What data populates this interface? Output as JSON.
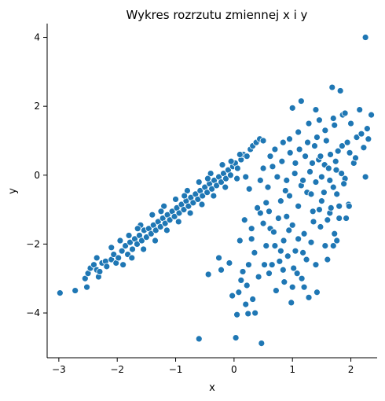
{
  "chart_data": {
    "type": "scatter",
    "title": "Wykres rozrzutu zmiennej x i y",
    "xlabel": "x",
    "ylabel": "y",
    "xlim": [
      -3.2,
      2.45
    ],
    "ylim": [
      -5.3,
      4.4
    ],
    "xticks": [
      -3,
      -2,
      -1,
      0,
      1,
      2
    ],
    "yticks": [
      -4,
      -2,
      0,
      2,
      4
    ],
    "xtick_labels": [
      "−3",
      "−2",
      "−1",
      "0",
      "1",
      "2"
    ],
    "ytick_labels": [
      "−4",
      "−2",
      "0",
      "2",
      "4"
    ],
    "grid": false,
    "color": "#1f77b4",
    "series": [
      {
        "points": [
          [
            -2.98,
            -3.42
          ],
          [
            -2.72,
            -3.35
          ],
          [
            -2.52,
            -3.25
          ],
          [
            -2.55,
            -3.0
          ],
          [
            -2.5,
            -2.85
          ],
          [
            -2.46,
            -2.7
          ],
          [
            -2.4,
            -2.6
          ],
          [
            -2.35,
            -2.75
          ],
          [
            -2.32,
            -2.95
          ],
          [
            -2.3,
            -2.8
          ],
          [
            -2.26,
            -2.55
          ],
          [
            -2.2,
            -2.5
          ],
          [
            -2.18,
            -2.65
          ],
          [
            -2.1,
            -2.45
          ],
          [
            -2.06,
            -2.3
          ],
          [
            -2.02,
            -2.55
          ],
          [
            -1.95,
            -1.9
          ],
          [
            -1.98,
            -2.4
          ],
          [
            -1.92,
            -2.2
          ],
          [
            -1.86,
            -2.05
          ],
          [
            -1.82,
            -2.3
          ],
          [
            -1.78,
            -1.95
          ],
          [
            -1.74,
            -2.15
          ],
          [
            -1.7,
            -1.85
          ],
          [
            -1.66,
            -2.0
          ],
          [
            -1.62,
            -1.75
          ],
          [
            -1.58,
            -1.9
          ],
          [
            -1.54,
            -1.6
          ],
          [
            -1.5,
            -1.8
          ],
          [
            -1.46,
            -1.55
          ],
          [
            -1.42,
            -1.7
          ],
          [
            -1.38,
            -1.45
          ],
          [
            -1.34,
            -1.6
          ],
          [
            -1.3,
            -1.35
          ],
          [
            -1.26,
            -1.5
          ],
          [
            -1.22,
            -1.25
          ],
          [
            -1.18,
            -1.4
          ],
          [
            -1.14,
            -1.15
          ],
          [
            -1.1,
            -1.3
          ],
          [
            -1.06,
            -1.05
          ],
          [
            -1.02,
            -1.2
          ],
          [
            -0.98,
            -0.95
          ],
          [
            -0.94,
            -1.1
          ],
          [
            -0.9,
            -0.85
          ],
          [
            -0.86,
            -1.0
          ],
          [
            -0.82,
            -0.75
          ],
          [
            -0.78,
            -0.9
          ],
          [
            -0.74,
            -0.65
          ],
          [
            -0.7,
            -0.8
          ],
          [
            -0.66,
            -0.55
          ],
          [
            -0.62,
            -0.7
          ],
          [
            -0.58,
            -0.45
          ],
          [
            -0.54,
            -0.6
          ],
          [
            -0.5,
            -0.35
          ],
          [
            -0.46,
            -0.5
          ],
          [
            -0.42,
            -0.25
          ],
          [
            -0.38,
            -0.4
          ],
          [
            -0.34,
            -0.15
          ],
          [
            -0.3,
            -0.3
          ],
          [
            -0.26,
            -0.05
          ],
          [
            -0.22,
            -0.2
          ],
          [
            -0.18,
            0.05
          ],
          [
            -0.14,
            -0.1
          ],
          [
            -0.1,
            0.15
          ],
          [
            -0.06,
            0.0
          ],
          [
            -0.02,
            0.25
          ],
          [
            0.02,
            0.35
          ],
          [
            0.06,
            0.2
          ],
          [
            0.12,
            0.45
          ],
          [
            0.16,
            0.6
          ],
          [
            0.22,
            0.55
          ],
          [
            0.28,
            0.75
          ],
          [
            0.32,
            0.85
          ],
          [
            0.38,
            0.95
          ],
          [
            0.44,
            1.05
          ],
          [
            0.5,
            1.0
          ],
          [
            -1.9,
            -2.6
          ],
          [
            -1.75,
            -2.4
          ],
          [
            -1.55,
            -2.15
          ],
          [
            -1.35,
            -1.9
          ],
          [
            -1.15,
            -1.6
          ],
          [
            -0.95,
            -1.35
          ],
          [
            -0.75,
            -1.1
          ],
          [
            -0.55,
            -0.85
          ],
          [
            -0.35,
            -0.6
          ],
          [
            -0.15,
            -0.35
          ],
          [
            0.05,
            -0.1
          ],
          [
            -2.1,
            -2.1
          ],
          [
            -1.8,
            -1.75
          ],
          [
            -1.6,
            -1.45
          ],
          [
            -1.4,
            -1.15
          ],
          [
            -1.2,
            -0.9
          ],
          [
            -1.0,
            -0.7
          ],
          [
            -0.8,
            -0.45
          ],
          [
            -0.6,
            -0.2
          ],
          [
            -0.4,
            0.05
          ],
          [
            -0.2,
            0.3
          ],
          [
            0.1,
            0.6
          ],
          [
            -2.35,
            -2.4
          ],
          [
            -1.65,
            -1.55
          ],
          [
            -1.25,
            -1.05
          ],
          [
            -0.85,
            -0.6
          ],
          [
            -0.45,
            -0.1
          ],
          [
            -0.05,
            0.4
          ],
          [
            0.3,
            -1.85
          ],
          [
            0.35,
            -2.25
          ],
          [
            0.42,
            -2.95
          ],
          [
            0.25,
            -2.6
          ],
          [
            0.18,
            -1.3
          ],
          [
            0.45,
            -1.1
          ],
          [
            0.55,
            -0.8
          ],
          [
            0.62,
            -1.55
          ],
          [
            0.7,
            -2.05
          ],
          [
            0.78,
            -2.5
          ],
          [
            0.85,
            -1.9
          ],
          [
            0.9,
            -1.2
          ],
          [
            0.95,
            -0.6
          ],
          [
            1.0,
            -1.45
          ],
          [
            1.05,
            -2.2
          ],
          [
            1.1,
            -0.9
          ],
          [
            1.15,
            -0.3
          ],
          [
            1.2,
            -1.7
          ],
          [
            1.25,
            -0.5
          ],
          [
            1.3,
            0.1
          ],
          [
            1.35,
            -1.05
          ],
          [
            1.4,
            -0.2
          ],
          [
            1.45,
            0.45
          ],
          [
            1.5,
            -0.75
          ],
          [
            1.55,
            0.3
          ],
          [
            1.6,
            -1.3
          ],
          [
            1.65,
            0.6
          ],
          [
            1.7,
            -0.35
          ],
          [
            1.75,
            0.15
          ],
          [
            1.8,
            -0.9
          ],
          [
            1.85,
            0.85
          ],
          [
            1.9,
            -0.1
          ],
          [
            0.58,
            -0.35
          ],
          [
            0.66,
            0.25
          ],
          [
            0.74,
            -0.05
          ],
          [
            0.82,
            0.4
          ],
          [
            0.88,
            -0.45
          ],
          [
            0.96,
            0.65
          ],
          [
            1.04,
            0.05
          ],
          [
            1.12,
            0.75
          ],
          [
            1.18,
            -0.15
          ],
          [
            1.26,
            0.95
          ],
          [
            1.34,
            0.35
          ],
          [
            1.42,
            1.1
          ],
          [
            1.48,
            0.55
          ],
          [
            1.56,
            1.3
          ],
          [
            1.62,
            0.2
          ],
          [
            1.72,
            1.45
          ],
          [
            1.78,
            0.7
          ],
          [
            1.86,
            1.75
          ],
          [
            1.94,
            0.95
          ],
          [
            2.0,
            1.5
          ],
          [
            2.05,
            0.35
          ],
          [
            2.1,
            1.1
          ],
          [
            2.15,
            1.9
          ],
          [
            2.22,
            0.8
          ],
          [
            2.28,
            1.35
          ],
          [
            2.35,
            1.75
          ],
          [
            2.25,
            -0.05
          ],
          [
            1.0,
            1.95
          ],
          [
            1.15,
            2.15
          ],
          [
            1.4,
            1.9
          ],
          [
            1.68,
            2.55
          ],
          [
            1.82,
            2.45
          ],
          [
            2.25,
            4.0
          ],
          [
            0.6,
            -1.05
          ],
          [
            0.68,
            -1.65
          ],
          [
            0.76,
            -1.25
          ],
          [
            0.84,
            -2.75
          ],
          [
            0.92,
            -2.35
          ],
          [
            1.0,
            -3.25
          ],
          [
            1.08,
            -2.85
          ],
          [
            1.16,
            -3.0
          ],
          [
            1.24,
            -2.45
          ],
          [
            1.32,
            -1.95
          ],
          [
            1.4,
            -2.6
          ],
          [
            1.48,
            -1.5
          ],
          [
            1.56,
            -2.05
          ],
          [
            1.64,
            -1.1
          ],
          [
            1.72,
            -1.7
          ],
          [
            1.8,
            -1.25
          ],
          [
            1.96,
            -0.85
          ],
          [
            0.2,
            -0.05
          ],
          [
            0.26,
            -0.4
          ],
          [
            0.4,
            -0.95
          ],
          [
            0.5,
            -1.4
          ],
          [
            0.55,
            -2.05
          ],
          [
            0.65,
            -2.6
          ],
          [
            0.72,
            -3.35
          ],
          [
            0.8,
            -2.2
          ],
          [
            0.86,
            -3.1
          ],
          [
            0.94,
            -1.6
          ],
          [
            1.02,
            -2.7
          ],
          [
            1.1,
            -1.85
          ],
          [
            1.18,
            -2.25
          ],
          [
            1.28,
            -3.55
          ],
          [
            1.36,
            -1.35
          ],
          [
            1.46,
            -1.0
          ],
          [
            1.54,
            -0.5
          ],
          [
            1.66,
            -0.95
          ],
          [
            1.76,
            -0.55
          ],
          [
            1.88,
            -0.25
          ],
          [
            -0.6,
            -4.75
          ],
          [
            0.03,
            -4.72
          ],
          [
            0.47,
            -4.88
          ],
          [
            0.05,
            -4.05
          ],
          [
            0.24,
            -4.02
          ],
          [
            0.36,
            -4.0
          ],
          [
            0.2,
            -3.75
          ],
          [
            0.32,
            -3.6
          ],
          [
            -0.03,
            -3.5
          ],
          [
            0.08,
            -3.4
          ],
          [
            -0.44,
            -2.88
          ],
          [
            -0.22,
            -2.75
          ],
          [
            -0.26,
            -2.4
          ],
          [
            -0.08,
            -2.55
          ],
          [
            0.12,
            -3.05
          ],
          [
            0.15,
            -2.8
          ],
          [
            0.22,
            -3.2
          ],
          [
            0.1,
            -1.9
          ],
          [
            0.3,
            -1.55
          ],
          [
            0.52,
            -2.6
          ],
          [
            0.6,
            -2.85
          ],
          [
            0.98,
            -3.7
          ],
          [
            1.2,
            -3.25
          ],
          [
            1.42,
            -3.4
          ],
          [
            1.6,
            -2.45
          ],
          [
            1.7,
            -2.05
          ],
          [
            1.76,
            -1.9
          ],
          [
            1.92,
            -1.25
          ],
          [
            1.97,
            -0.9
          ],
          [
            0.8,
            -0.75
          ],
          [
            0.9,
            -0.15
          ],
          [
            1.05,
            0.35
          ],
          [
            1.22,
            0.55
          ],
          [
            1.32,
            -0.55
          ],
          [
            1.38,
            0.85
          ],
          [
            1.5,
            -0.05
          ],
          [
            1.58,
            1.0
          ],
          [
            1.64,
            -0.15
          ],
          [
            1.74,
            0.4
          ],
          [
            1.84,
            0.05
          ],
          [
            1.98,
            0.65
          ],
          [
            2.08,
            0.5
          ],
          [
            2.18,
            1.2
          ],
          [
            0.45,
            -0.15
          ],
          [
            0.5,
            0.2
          ],
          [
            0.62,
            0.55
          ],
          [
            0.7,
            0.75
          ],
          [
            0.84,
            0.95
          ],
          [
            0.95,
            1.05
          ],
          [
            1.1,
            1.25
          ],
          [
            1.28,
            1.5
          ],
          [
            1.46,
            1.6
          ],
          [
            1.7,
            1.65
          ],
          [
            1.9,
            1.8
          ],
          [
            2.3,
            1.05
          ]
        ]
      }
    ]
  }
}
